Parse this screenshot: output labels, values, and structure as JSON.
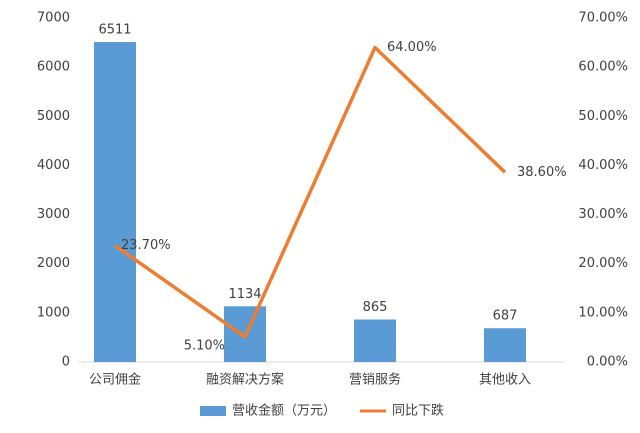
{
  "chart_data": {
    "type": "bar",
    "categories": [
      "公司佣金",
      "融资解决方案",
      "营销服务",
      "其他收入"
    ],
    "series": [
      {
        "name": "营收金额（万元）",
        "color": "#5b9bd5",
        "values": [
          6511,
          1134,
          865,
          687
        ]
      },
      {
        "name": "同比下跌",
        "color": "#ed7d31",
        "type": "line",
        "axis": "y2",
        "values": [
          23.7,
          5.1,
          64,
          38.6
        ],
        "value_labels": [
          "23.70%",
          "5.10%",
          "64.00%",
          "38.60%"
        ]
      }
    ],
    "ylim": [
      0,
      7000
    ],
    "yticks": [
      0,
      1000,
      2000,
      3000,
      4000,
      5000,
      6000,
      7000
    ],
    "y2lim": [
      0,
      70
    ],
    "y2ticks": [
      {
        "value": 0,
        "label": "0.00%"
      },
      {
        "value": 10,
        "label": "10.00%"
      },
      {
        "value": 20,
        "label": "20.00%"
      },
      {
        "value": 30,
        "label": "30.00%"
      },
      {
        "value": 40,
        "label": "40.00%"
      },
      {
        "value": 50,
        "label": "50.00%"
      },
      {
        "value": 60,
        "label": "60.00%"
      },
      {
        "value": 70,
        "label": "70.00%"
      }
    ],
    "grid": false,
    "legend": "bottom"
  }
}
